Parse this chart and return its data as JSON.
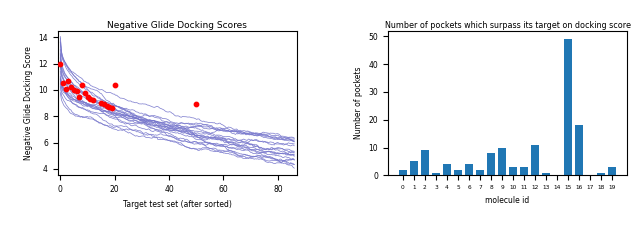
{
  "left_title": "Negative Glide Docking Scores",
  "left_xlabel": "Target test set (after sorted)",
  "left_ylabel": "Negative Glide Docking Score",
  "left_ylim": [
    3.5,
    14.5
  ],
  "left_xlim": [
    -1,
    87
  ],
  "left_yticks": [
    4,
    6,
    8,
    10,
    12,
    14
  ],
  "left_xticks": [
    0,
    20,
    40,
    60,
    80
  ],
  "num_lines": 20,
  "x_max": 86,
  "red_dots_x": [
    0,
    1,
    2,
    3,
    4,
    5,
    6,
    7,
    8,
    9,
    10,
    11,
    12,
    20,
    15,
    16,
    17,
    18,
    19,
    50
  ],
  "red_dots_y": [
    12.0,
    10.5,
    10.1,
    10.7,
    10.2,
    10.0,
    9.9,
    9.5,
    10.4,
    9.8,
    9.5,
    9.3,
    9.2,
    10.4,
    9.0,
    8.9,
    8.8,
    8.7,
    8.6,
    8.9
  ],
  "line_color": "#7777cc",
  "red_dot_color": "#ff0000",
  "right_title": "Number of pockets which surpass its target on docking score",
  "right_xlabel": "molecule id",
  "right_ylabel": "Number of pockets",
  "bar_values": [
    2,
    5,
    9,
    1,
    4,
    2,
    4,
    2,
    8,
    10,
    3,
    3,
    11,
    1,
    0,
    49,
    18,
    0,
    1,
    3
  ],
  "bar_color": "#2077b4",
  "right_ylim": [
    0,
    52
  ],
  "right_yticks": [
    0,
    10,
    20,
    30,
    40,
    50
  ],
  "fig_width": 6.4,
  "fig_height": 2.37,
  "dpi": 100
}
